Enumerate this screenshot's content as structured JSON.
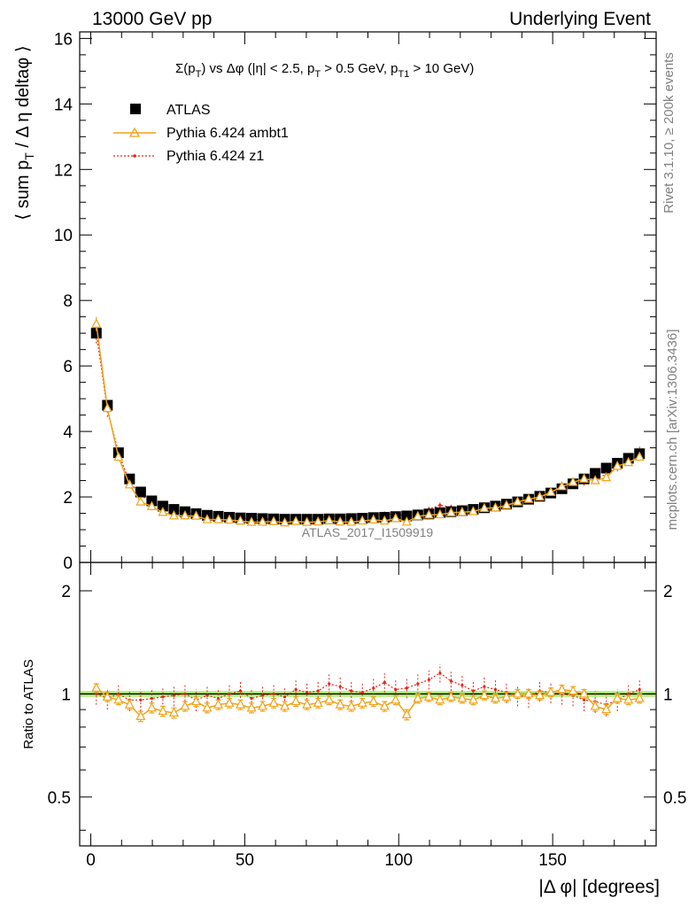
{
  "header": {
    "left": "13000 GeV pp",
    "right": "Underlying Event"
  },
  "plot_title": {
    "pre": "Σ(p",
    "sub1": "T",
    "mid1": ") vs Δφ (|η| < 2.5, p",
    "sub2": "T",
    "mid2": " > 0.5 GeV, p",
    "sub3": "T1",
    "post": " > 10 GeV)"
  },
  "y_label": {
    "pre": "⟨ sum p",
    "sub": "T",
    "post": " / Δ η deltaφ ⟩"
  },
  "ratio_ylabel": "Ratio to ATLAS",
  "x_label": "|Δ φ| [degrees]",
  "side_text_top": "Rivet 3.1.10, ≥ 200k events",
  "side_text_bottom": "mcplots.cern.ch [arXiv:1306.3436]",
  "watermark": "ATLAS_2017_I1509919",
  "legend": [
    {
      "label": "ATLAS",
      "color": "#000000"
    },
    {
      "label": "Pythia 6.424 ambt1",
      "color": "#f0a21a"
    },
    {
      "label": "Pythia 6.424 z1",
      "color": "#e8231a"
    }
  ],
  "main_yticks": [
    "0",
    "2",
    "4",
    "6",
    "8",
    "10",
    "12",
    "14",
    "16"
  ],
  "ratio_yticks": [
    "0.5",
    "1",
    "2"
  ],
  "xticks": [
    "0",
    "50",
    "100",
    "150"
  ],
  "chart_data": {
    "type": "scatter",
    "x_range": [
      -3.6,
      183.6
    ],
    "main_ylim": [
      0,
      16.2
    ],
    "ratio_ylim": [
      0.36,
      2.42
    ],
    "ratio_scale": "log",
    "x": [
      1.8,
      5.4,
      9.0,
      12.6,
      16.2,
      19.8,
      23.4,
      27.0,
      30.6,
      34.2,
      37.8,
      41.4,
      45.0,
      48.6,
      52.2,
      55.8,
      59.4,
      63.0,
      66.6,
      70.2,
      73.8,
      77.4,
      81.0,
      84.6,
      88.2,
      91.8,
      95.4,
      99.0,
      102.6,
      106.2,
      109.8,
      113.4,
      117.0,
      120.6,
      124.2,
      127.8,
      131.4,
      135.0,
      138.6,
      142.2,
      145.8,
      149.4,
      153.0,
      156.6,
      160.2,
      163.8,
      167.4,
      171.0,
      174.6,
      178.2
    ],
    "series": [
      {
        "name": "ATLAS",
        "values": [
          7.0,
          4.8,
          3.35,
          2.55,
          2.15,
          1.88,
          1.72,
          1.62,
          1.55,
          1.49,
          1.44,
          1.41,
          1.38,
          1.36,
          1.35,
          1.34,
          1.33,
          1.32,
          1.32,
          1.32,
          1.32,
          1.33,
          1.33,
          1.34,
          1.35,
          1.37,
          1.38,
          1.4,
          1.42,
          1.45,
          1.48,
          1.52,
          1.55,
          1.58,
          1.62,
          1.67,
          1.72,
          1.78,
          1.85,
          1.93,
          2.02,
          2.12,
          2.25,
          2.4,
          2.55,
          2.72,
          2.88,
          3.03,
          3.18,
          3.32
        ]
      },
      {
        "name": "Pythia 6.424 ambt1",
        "ratio": [
          1.04,
          0.98,
          0.96,
          0.93,
          0.86,
          0.91,
          0.89,
          0.88,
          0.92,
          0.95,
          0.91,
          0.93,
          0.94,
          0.93,
          0.91,
          0.92,
          0.94,
          0.92,
          0.95,
          0.93,
          0.94,
          0.96,
          0.93,
          0.92,
          0.94,
          0.95,
          0.92,
          0.96,
          0.87,
          0.97,
          0.98,
          0.96,
          0.98,
          0.97,
          0.96,
          0.99,
          0.97,
          0.98,
          1.0,
          1.0,
          0.99,
          1.01,
          1.03,
          1.02,
          1.0,
          0.92,
          0.9,
          0.97,
          0.96,
          0.97
        ]
      },
      {
        "name": "Pythia 6.424 z1",
        "ratio": [
          1.0,
          0.97,
          1.0,
          0.96,
          0.96,
          0.97,
          0.98,
          0.99,
          1.0,
          0.96,
          0.99,
          0.97,
          1.0,
          1.02,
          0.97,
          0.99,
          1.0,
          0.98,
          1.03,
          1.01,
          1.02,
          1.07,
          1.05,
          1.02,
          1.01,
          1.04,
          1.08,
          1.03,
          1.04,
          1.07,
          1.1,
          1.15,
          1.09,
          1.06,
          1.02,
          1.05,
          1.03,
          1.01,
          0.99,
          0.98,
          1.02,
          1.01,
          1.0,
          0.99,
          0.96,
          0.95,
          0.93,
          0.96,
          1.0,
          1.03
        ]
      }
    ]
  }
}
